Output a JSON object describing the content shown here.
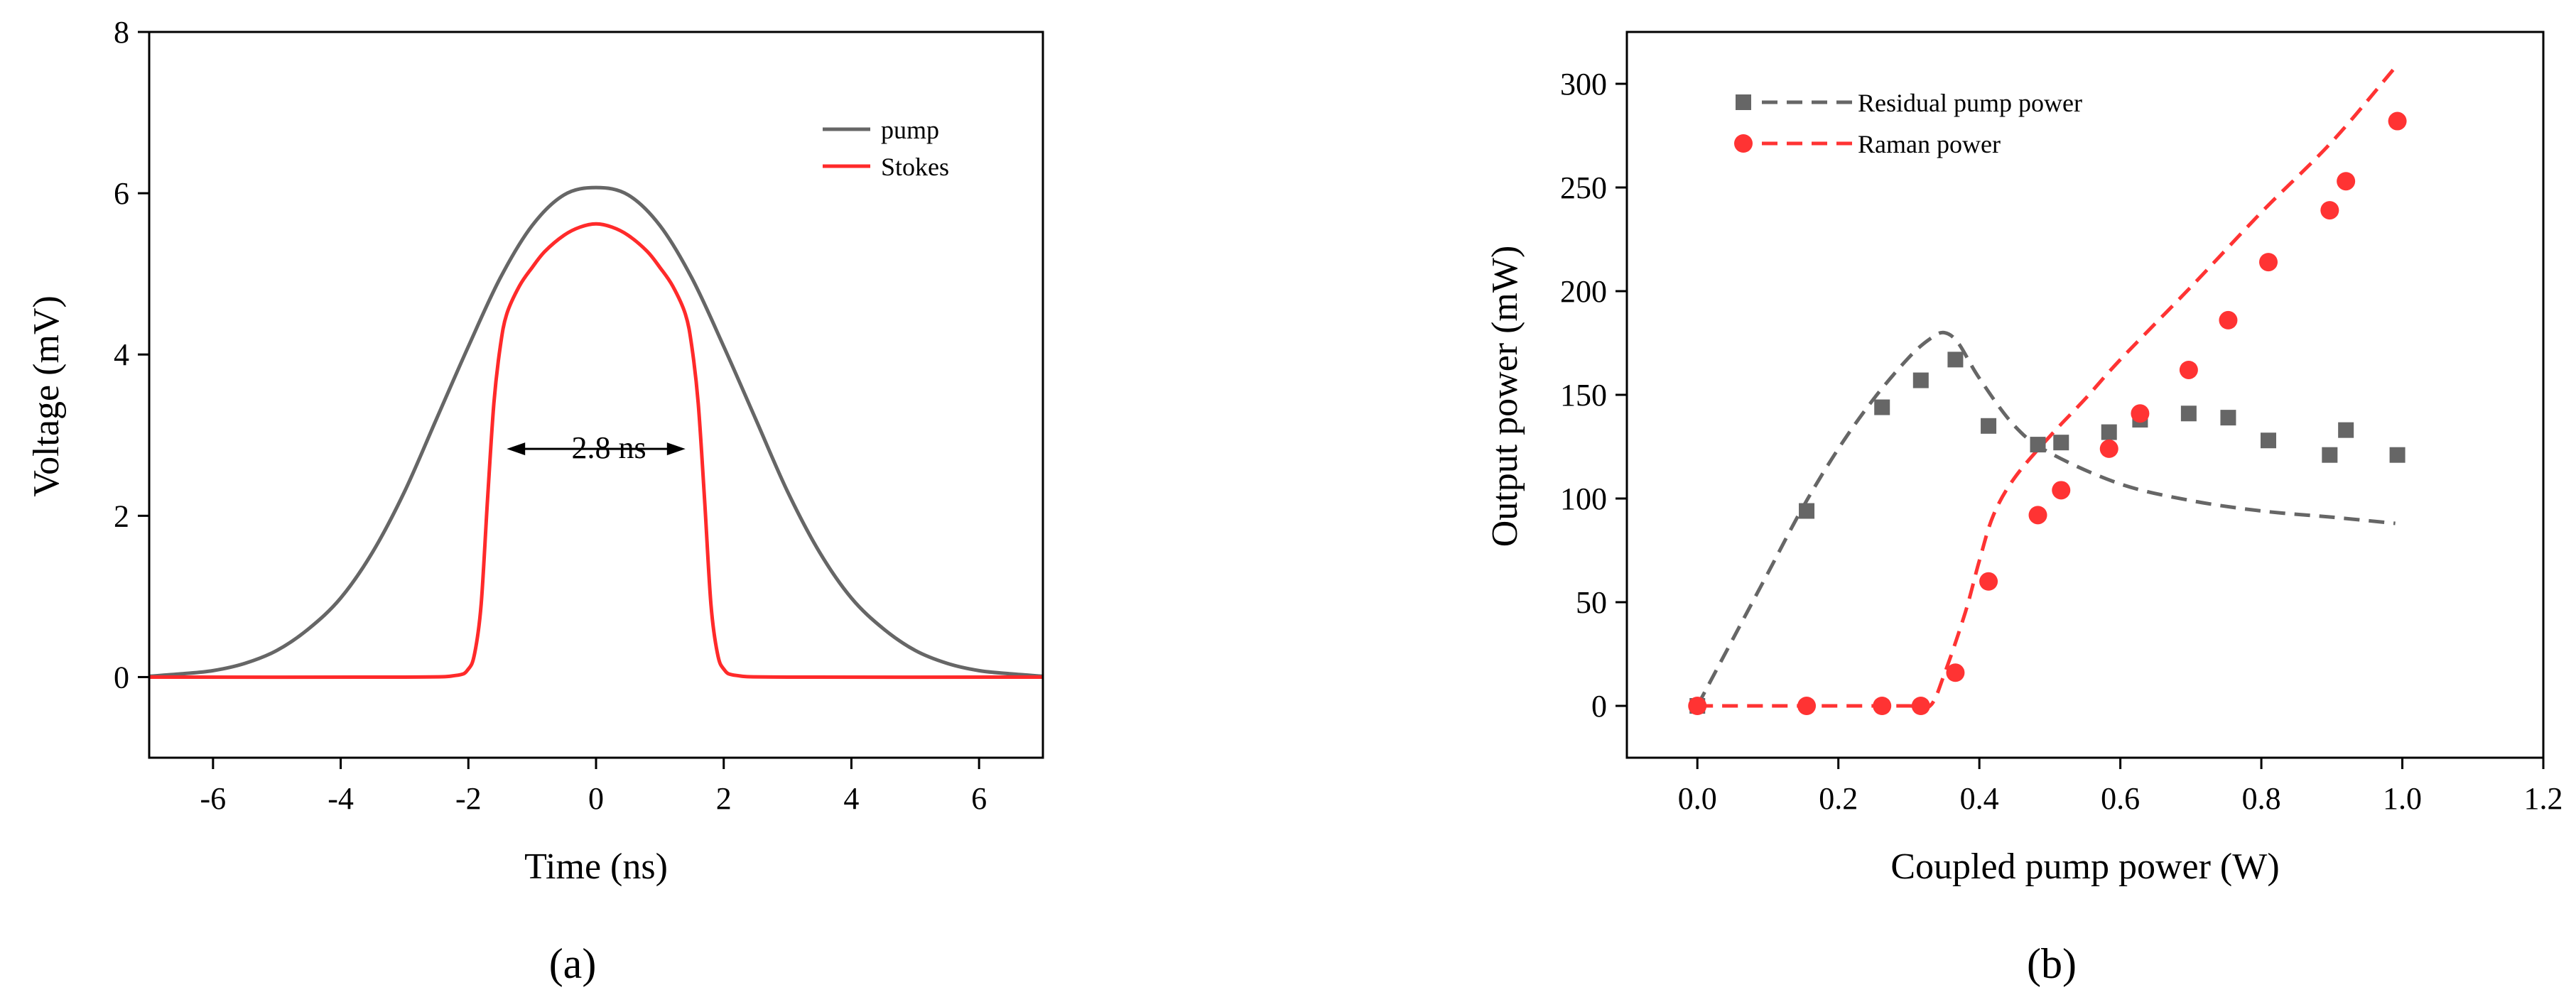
{
  "chart_data": [
    {
      "id": "a",
      "type": "line",
      "panel_label": "(a)",
      "xlabel": "Time (ns)",
      "ylabel": "Voltage (mV)",
      "xlim": [
        -7,
        7
      ],
      "ylim": [
        -1,
        8
      ],
      "x_ticks": [
        -6,
        -4,
        -2,
        0,
        2,
        4,
        6
      ],
      "y_ticks": [
        0,
        2,
        4,
        6,
        8
      ],
      "legend": {
        "placement": "top-right",
        "entries": [
          "pump",
          "Stokes"
        ]
      },
      "series": [
        {
          "name": "pump",
          "color": "#666666",
          "x": [
            -7,
            -6.5,
            -6,
            -5.5,
            -5,
            -4.5,
            -4,
            -3.5,
            -3,
            -2.5,
            -2,
            -1.5,
            -1,
            -0.5,
            0,
            0.5,
            1,
            1.5,
            2,
            2.5,
            3,
            3.5,
            4,
            4.5,
            5,
            5.5,
            6,
            6.5,
            7
          ],
          "y": [
            0.01,
            0.04,
            0.08,
            0.17,
            0.33,
            0.6,
            0.98,
            1.55,
            2.3,
            3.2,
            4.1,
            4.95,
            5.6,
            5.98,
            6.07,
            5.98,
            5.6,
            4.95,
            4.1,
            3.2,
            2.3,
            1.55,
            0.98,
            0.6,
            0.33,
            0.17,
            0.08,
            0.04,
            0.01
          ]
        },
        {
          "name": "Stokes",
          "color": "#ff2a2a",
          "x": [
            -7,
            -3,
            -2.2,
            -2,
            -1.9,
            -1.8,
            -1.7,
            -1.6,
            -1.5,
            -1.4,
            -1.2,
            -1,
            -0.8,
            -0.5,
            -0.25,
            0,
            0.25,
            0.5,
            0.8,
            1,
            1.2,
            1.4,
            1.5,
            1.6,
            1.7,
            1.8,
            1.9,
            2,
            2.2,
            3,
            7
          ],
          "y": [
            0,
            0,
            0.02,
            0.1,
            0.3,
            0.9,
            2.2,
            3.4,
            4.1,
            4.5,
            4.85,
            5.08,
            5.28,
            5.48,
            5.58,
            5.62,
            5.58,
            5.48,
            5.28,
            5.08,
            4.85,
            4.5,
            4.1,
            3.4,
            2.2,
            0.9,
            0.3,
            0.1,
            0.02,
            0,
            0
          ]
        }
      ],
      "annotation": {
        "text": "2.8 ns",
        "x_start": -1.4,
        "x_end": 1.4,
        "y": 2.83
      }
    },
    {
      "id": "b",
      "type": "scatter",
      "panel_label": "(b)",
      "xlabel": "Coupled pump power (W)",
      "ylabel": "Output power (mW)",
      "xlim": [
        -0.1,
        1.2
      ],
      "ylim": [
        -25,
        325
      ],
      "x_ticks": [
        0.0,
        0.2,
        0.4,
        0.6,
        0.8,
        1.0,
        1.2
      ],
      "x_tick_labels": [
        "0.0",
        "0.2",
        "0.4",
        "0.6",
        "0.8",
        "1.0",
        "1.2"
      ],
      "y_ticks": [
        0,
        50,
        100,
        150,
        200,
        250,
        300
      ],
      "legend": {
        "placement": "top-left",
        "entries": [
          "Residual pump power",
          "Raman power"
        ]
      },
      "series": [
        {
          "name": "Residual pump power",
          "color": "#666666",
          "marker": "square",
          "x": [
            0.0,
            0.155,
            0.262,
            0.317,
            0.366,
            0.413,
            0.483,
            0.516,
            0.584,
            0.628,
            0.697,
            0.753,
            0.81,
            0.897,
            0.92,
            0.993
          ],
          "y": [
            0,
            94,
            144,
            157,
            167,
            135,
            126,
            127,
            132,
            138,
            141,
            139,
            128,
            121,
            133,
            121
          ],
          "fit": {
            "x": [
              0.0,
              0.05,
              0.1,
              0.15,
              0.2,
              0.25,
              0.3,
              0.33,
              0.35,
              0.37,
              0.4,
              0.45,
              0.5,
              0.6,
              0.7,
              0.8,
              0.9,
              0.99
            ],
            "y": [
              0,
              32,
              64,
              96,
              124,
              148,
              168,
              177,
              180,
              175,
              158,
              135,
              122,
              107,
              99,
              94,
              91,
              88
            ]
          }
        },
        {
          "name": "Raman power",
          "color": "#ff3333",
          "marker": "circle",
          "x": [
            0.0,
            0.155,
            0.262,
            0.317,
            0.366,
            0.413,
            0.483,
            0.516,
            0.584,
            0.628,
            0.697,
            0.753,
            0.81,
            0.897,
            0.92,
            0.993
          ],
          "y": [
            0,
            0,
            0,
            0,
            16,
            60,
            92,
            104,
            124,
            141,
            162,
            186,
            214,
            239,
            253,
            282
          ],
          "fit": {
            "x": [
              0.0,
              0.1,
              0.2,
              0.3,
              0.33,
              0.35,
              0.38,
              0.4,
              0.42,
              0.45,
              0.5,
              0.55,
              0.6,
              0.7,
              0.8,
              0.9,
              0.99
            ],
            "y": [
              0,
              0,
              0,
              0,
              0,
              15,
              45,
              70,
              92,
              110,
              130,
              148,
              167,
              202,
              238,
              272,
              308
            ]
          }
        }
      ]
    }
  ]
}
